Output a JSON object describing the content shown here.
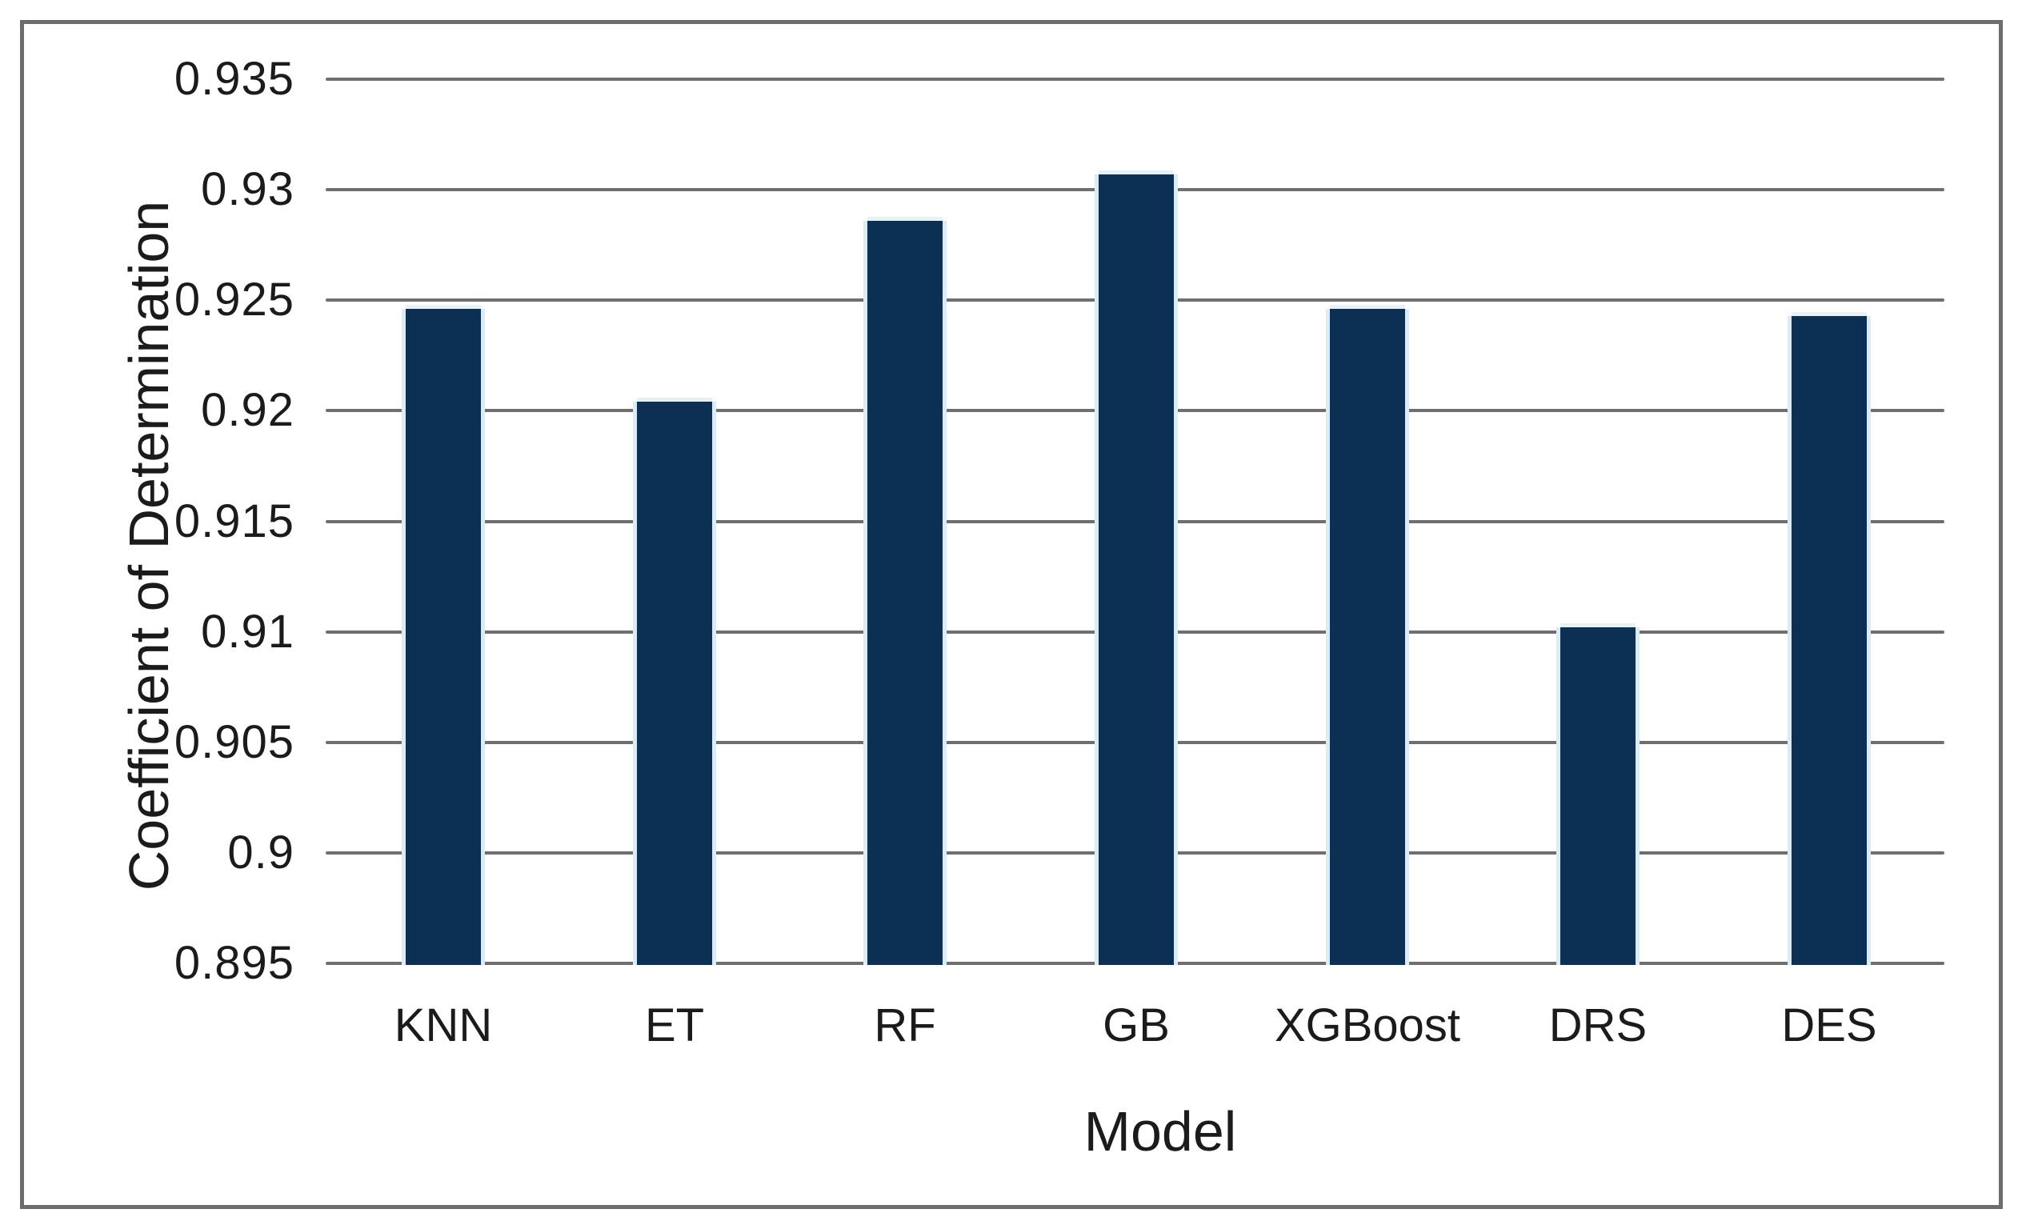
{
  "chart_data": {
    "type": "bar",
    "title": "",
    "xlabel": "Model",
    "ylabel": "Coefficient of Determination",
    "categories": [
      "KNN",
      "ET",
      "RF",
      "GB",
      "XGBoost",
      "DRS",
      "DES"
    ],
    "values": [
      0.9246,
      0.9204,
      0.9286,
      0.9307,
      0.9246,
      0.9102,
      0.9243
    ],
    "ylim": [
      0.895,
      0.935
    ],
    "ytick_step": 0.005,
    "ytick_labels": [
      "0.935",
      "0.93",
      "0.925",
      "0.92",
      "0.915",
      "0.91",
      "0.905",
      "0.9",
      "0.895"
    ],
    "grid": true,
    "legend": false,
    "colors": {
      "bar": "#0b3054",
      "bar_halo": "#d9ecf8",
      "gridline": "#6f6f6f",
      "frame_border": "#6d6d6d",
      "text": "#1b1b1b",
      "background": "#ffffff"
    }
  }
}
